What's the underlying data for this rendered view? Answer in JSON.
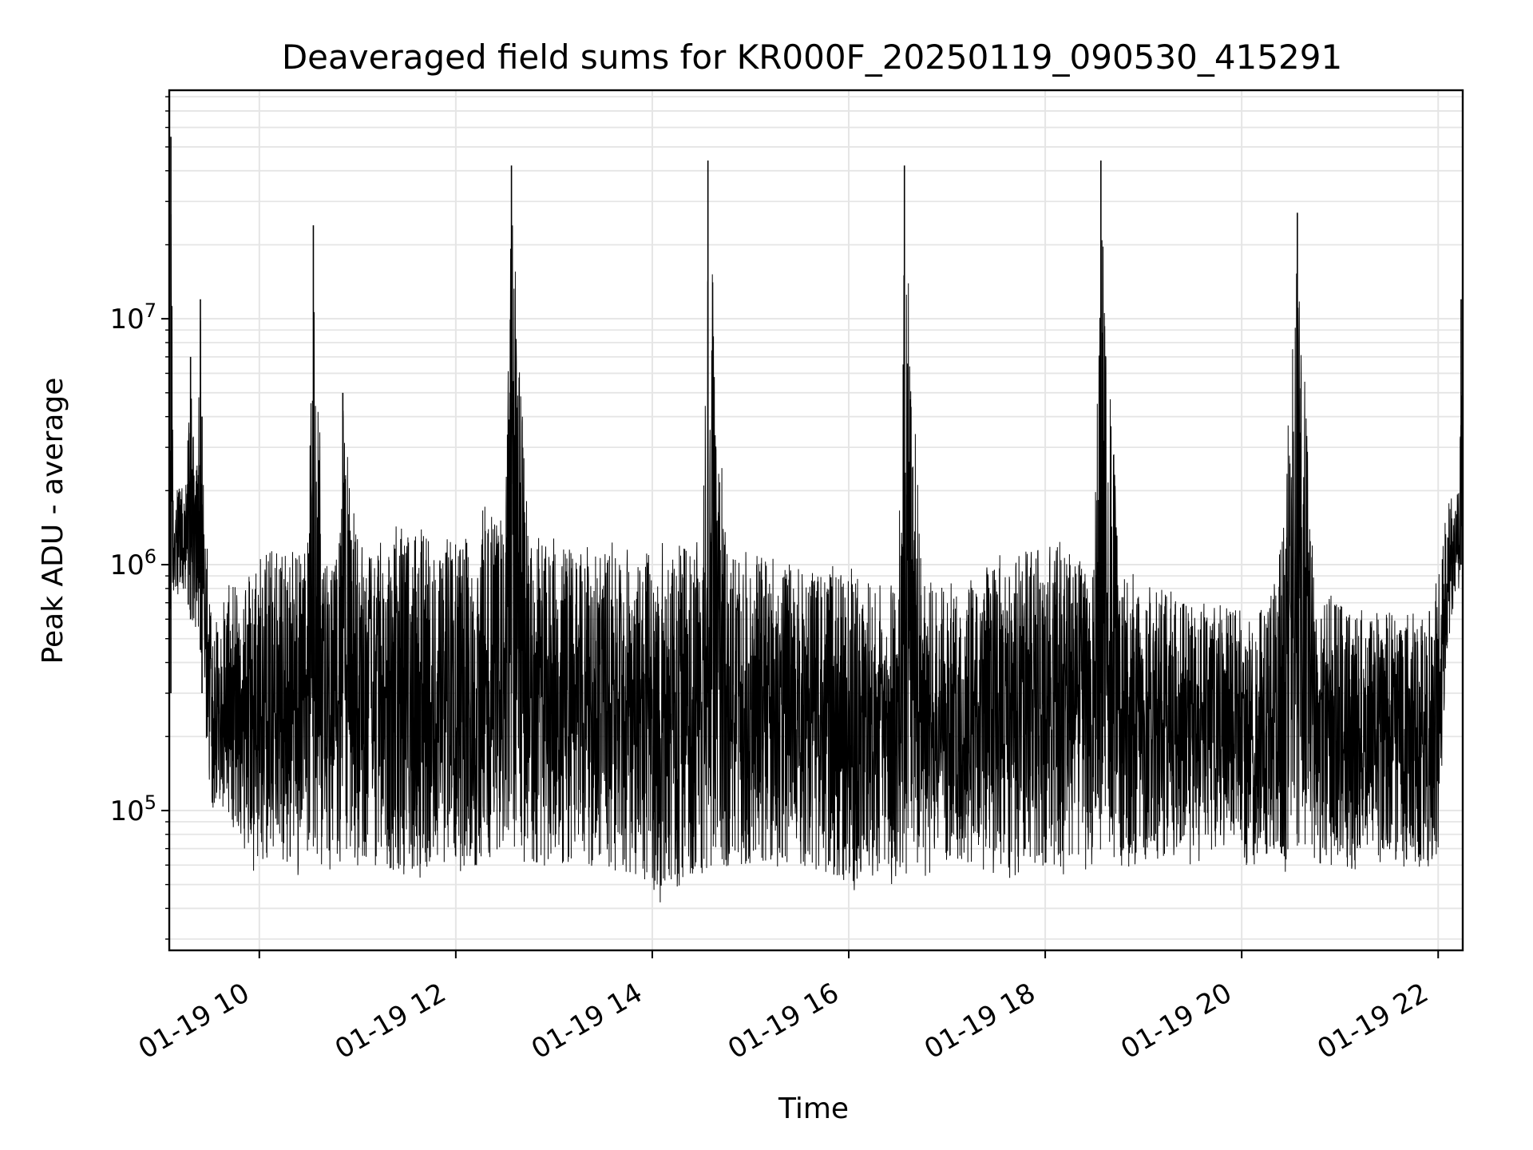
{
  "chart_data": {
    "type": "line",
    "title": "Deaveraged field sums for KR000F_20250119_090530_415291",
    "xlabel": "Time",
    "ylabel": "Peak ADU - average",
    "yscale": "log",
    "grid": true,
    "line_color": "#000000",
    "grid_color": "#e5e5e5",
    "xlim": [
      "2025-01-19 09:05",
      "2025-01-19 22:15"
    ],
    "ylim": [
      27000,
      85000000
    ],
    "x_ticks": [
      {
        "value": "2025-01-19 10:00",
        "label": "01-19 10"
      },
      {
        "value": "2025-01-19 12:00",
        "label": "01-19 12"
      },
      {
        "value": "2025-01-19 14:00",
        "label": "01-19 14"
      },
      {
        "value": "2025-01-19 16:00",
        "label": "01-19 16"
      },
      {
        "value": "2025-01-19 18:00",
        "label": "01-19 18"
      },
      {
        "value": "2025-01-19 20:00",
        "label": "01-19 20"
      },
      {
        "value": "2025-01-19 22:00",
        "label": "01-19 22"
      }
    ],
    "y_ticks": [
      {
        "value": 100000,
        "base": "10",
        "exp": "5"
      },
      {
        "value": 1000000,
        "base": "10",
        "exp": "6"
      },
      {
        "value": 10000000,
        "base": "10",
        "exp": "7"
      }
    ],
    "series": [
      {
        "x": [
          "2025-01-19 09:05",
          "2025-01-19 09:06",
          "2025-01-19 09:08",
          "2025-01-19 09:10",
          "2025-01-19 09:12",
          "2025-01-19 09:15",
          "2025-01-19 09:18",
          "2025-01-19 09:21",
          "2025-01-19 09:24",
          "2025-01-19 09:25",
          "2025-01-19 09:26",
          "2025-01-19 09:28",
          "2025-01-19 09:30",
          "2025-01-19 09:33",
          "2025-01-19 09:36",
          "2025-01-19 09:40",
          "2025-01-19 09:45",
          "2025-01-19 09:50",
          "2025-01-19 09:55",
          "2025-01-19 10:00",
          "2025-01-19 10:10",
          "2025-01-19 10:20",
          "2025-01-19 10:30",
          "2025-01-19 10:33",
          "2025-01-19 10:40",
          "2025-01-19 10:50",
          "2025-01-19 10:51",
          "2025-01-19 11:00",
          "2025-01-19 11:15",
          "2025-01-19 11:30",
          "2025-01-19 11:45",
          "2025-01-19 12:00",
          "2025-01-19 12:15",
          "2025-01-19 12:18",
          "2025-01-19 12:30",
          "2025-01-19 12:34",
          "2025-01-19 12:45",
          "2025-01-19 13:00",
          "2025-01-19 13:15",
          "2025-01-19 13:30",
          "2025-01-19 13:45",
          "2025-01-19 14:00",
          "2025-01-19 14:15",
          "2025-01-19 14:30",
          "2025-01-19 14:34",
          "2025-01-19 14:45",
          "2025-01-19 15:00",
          "2025-01-19 15:15",
          "2025-01-19 15:30",
          "2025-01-19 15:45",
          "2025-01-19 16:00",
          "2025-01-19 16:15",
          "2025-01-19 16:30",
          "2025-01-19 16:34",
          "2025-01-19 16:45",
          "2025-01-19 17:00",
          "2025-01-19 17:15",
          "2025-01-19 17:30",
          "2025-01-19 17:45",
          "2025-01-19 18:00",
          "2025-01-19 18:15",
          "2025-01-19 18:30",
          "2025-01-19 18:34",
          "2025-01-19 18:45",
          "2025-01-19 19:00",
          "2025-01-19 19:15",
          "2025-01-19 19:30",
          "2025-01-19 19:45",
          "2025-01-19 20:00",
          "2025-01-19 20:15",
          "2025-01-19 20:26",
          "2025-01-19 20:34",
          "2025-01-19 20:45",
          "2025-01-19 21:00",
          "2025-01-19 21:15",
          "2025-01-19 21:30",
          "2025-01-19 21:45",
          "2025-01-19 21:55",
          "2025-01-19 22:00",
          "2025-01-19 22:05",
          "2025-01-19 22:10",
          "2025-01-19 22:13",
          "2025-01-19 22:14",
          "2025-01-19 22:15"
        ],
        "y_high": [
          300000,
          55000000,
          2500000,
          2800000,
          2000000,
          2200000,
          7000000,
          2000000,
          12000000,
          4000000,
          2000000,
          1500000,
          900000,
          600000,
          700000,
          800000,
          900000,
          1000000,
          1100000,
          1200000,
          1300000,
          1300000,
          1300000,
          24000000,
          1300000,
          1400000,
          5000000,
          1400000,
          1400000,
          1500000,
          1400000,
          1400000,
          1400000,
          2400000,
          1350000,
          42000000,
          1300000,
          1300000,
          1300000,
          1250000,
          1200000,
          1250000,
          1300000,
          1350000,
          44000000,
          1300000,
          1200000,
          1100000,
          1000000,
          1000000,
          1000000,
          900000,
          900000,
          42000000,
          850000,
          900000,
          900000,
          1100000,
          1200000,
          1300000,
          1200000,
          1100000,
          44000000,
          1000000,
          900000,
          850000,
          800000,
          750000,
          700000,
          700000,
          1700000,
          27000000,
          800000,
          750000,
          700000,
          700000,
          700000,
          750000,
          900000,
          1800000,
          2000000,
          2200000,
          12000000,
          1500000
        ],
        "y_low": [
          300000,
          300000,
          800000,
          700000,
          800000,
          700000,
          600000,
          500000,
          450000,
          300000,
          200000,
          180000,
          100000,
          90000,
          100000,
          100000,
          80000,
          70000,
          60000,
          50000,
          60000,
          50000,
          60000,
          55000,
          55000,
          60000,
          60000,
          55000,
          55000,
          50000,
          55000,
          55000,
          60000,
          55000,
          60000,
          55000,
          55000,
          55000,
          55000,
          55000,
          50000,
          40000,
          45000,
          50000,
          50000,
          55000,
          55000,
          55000,
          50000,
          55000,
          45000,
          45000,
          50000,
          50000,
          50000,
          55000,
          55000,
          50000,
          55000,
          55000,
          55000,
          55000,
          55000,
          55000,
          60000,
          60000,
          60000,
          60000,
          60000,
          60000,
          55000,
          60000,
          60000,
          60000,
          55000,
          55000,
          55000,
          55000,
          60000,
          400000,
          700000,
          800000,
          1000000,
          1100000
        ]
      }
    ]
  }
}
